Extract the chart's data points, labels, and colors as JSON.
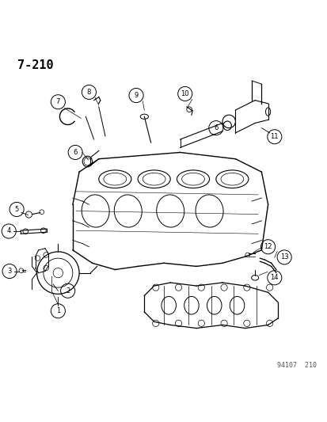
{
  "title": "7-210",
  "footer": "94107  210",
  "background_color": "#ffffff",
  "line_color": "#000000",
  "figsize": [
    4.14,
    5.33
  ],
  "dpi": 100,
  "font_size_title": 11,
  "font_size_labels": 7,
  "font_size_footer": 6
}
